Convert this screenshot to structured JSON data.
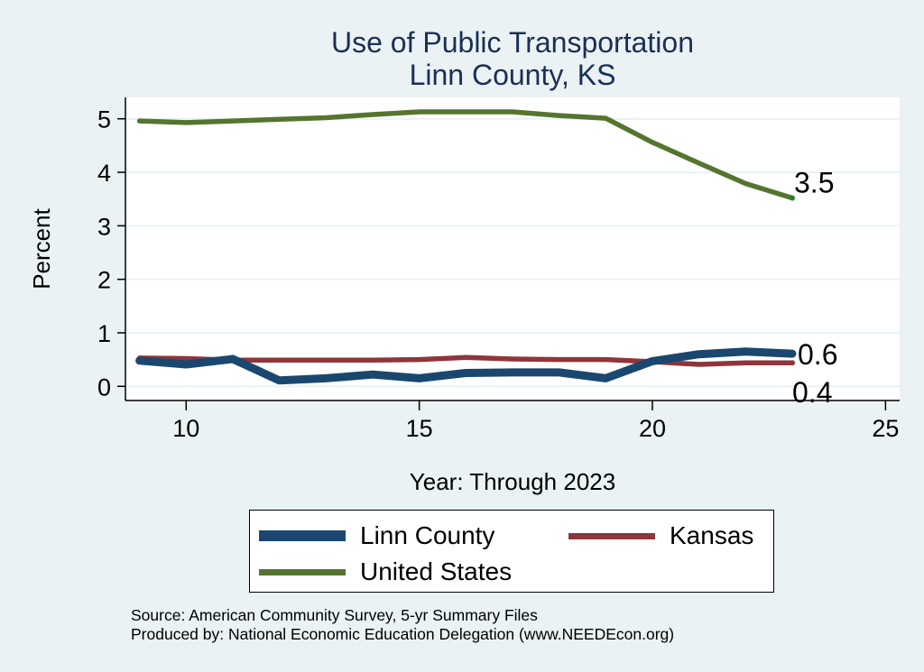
{
  "chart_data": {
    "type": "line",
    "title": "Use of Public Transportation",
    "subtitle": "Linn County, KS",
    "xlabel": "Year: Through 2023",
    "ylabel": "Percent",
    "xlim": [
      8.3,
      25.3
    ],
    "ylim": [
      -0.27,
      5.4
    ],
    "xticks": [
      10,
      15,
      20,
      25
    ],
    "yticks": [
      0,
      1,
      2,
      3,
      4,
      5
    ],
    "grid": true,
    "legend_position": "bottom",
    "x": [
      9,
      10,
      11,
      12,
      13,
      14,
      15,
      16,
      17,
      18,
      19,
      20,
      21,
      22,
      23
    ],
    "series": [
      {
        "name": "Linn County",
        "color": "#1a476f",
        "values": [
          0.48,
          0.41,
          0.51,
          0.11,
          0.15,
          0.22,
          0.15,
          0.25,
          0.26,
          0.26,
          0.15,
          0.47,
          0.6,
          0.65,
          0.61
        ],
        "end_label": "0.6"
      },
      {
        "name": "Kansas",
        "color": "#90353b",
        "values": [
          0.53,
          0.52,
          0.49,
          0.49,
          0.49,
          0.49,
          0.5,
          0.54,
          0.51,
          0.5,
          0.5,
          0.46,
          0.41,
          0.44,
          0.44
        ],
        "end_label": "0.4"
      },
      {
        "name": "United States",
        "color": "#55752f",
        "values": [
          4.96,
          4.93,
          4.96,
          4.99,
          5.02,
          5.08,
          5.13,
          5.13,
          5.13,
          5.06,
          5.01,
          4.56,
          4.17,
          3.79,
          3.52
        ],
        "end_label": "3.5"
      }
    ]
  },
  "legend": {
    "items": [
      "Linn County",
      "Kansas",
      "United States"
    ]
  },
  "notes": {
    "source": "Source: American Community Survey, 5-yr Summary Files",
    "produced_by": "Produced by: National Economic Education Delegation (www.NEEDEcon.org)"
  }
}
